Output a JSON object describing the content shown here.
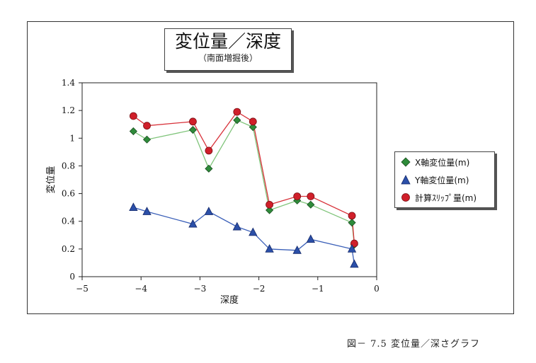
{
  "title": "変位量／深度",
  "subtitle": "（南面増掘後）",
  "caption": "図－ 7.5 変位量／深さグラフ",
  "colors": {
    "x_series": "#2e8b3a",
    "y_series": "#2b4fa8",
    "slip_series": "#d01f2a"
  },
  "chart_data": {
    "type": "line",
    "xlabel": "深度",
    "ylabel": "変位量",
    "xlim": [
      -5,
      0
    ],
    "ylim": [
      0,
      1.4
    ],
    "xticks": [
      "−5",
      "−4",
      "−3",
      "−2",
      "−1",
      "0"
    ],
    "yticks": [
      "0",
      "0.2",
      "0.4",
      "0.6",
      "0.8",
      "1",
      "1.2",
      "1.4"
    ],
    "legend_position": "right",
    "series": [
      {
        "name": "X軸変位量(m)",
        "marker": "diamond",
        "x": [
          -4.13,
          -3.9,
          -3.12,
          -2.85,
          -2.37,
          -2.1,
          -1.82,
          -1.35,
          -1.12,
          -0.42,
          -0.38
        ],
        "y": [
          1.05,
          0.99,
          1.06,
          0.78,
          1.13,
          1.08,
          0.48,
          0.55,
          0.52,
          0.39,
          0.23
        ]
      },
      {
        "name": "Y軸変位量(m)",
        "marker": "triangle",
        "x": [
          -4.13,
          -3.9,
          -3.12,
          -2.85,
          -2.37,
          -2.1,
          -1.82,
          -1.35,
          -1.12,
          -0.42,
          -0.38
        ],
        "y": [
          0.5,
          0.47,
          0.38,
          0.47,
          0.36,
          0.32,
          0.2,
          0.19,
          0.27,
          0.2,
          0.09
        ]
      },
      {
        "name": "計算ｽﾘｯﾌﾟ量(m)",
        "marker": "circle",
        "x": [
          -4.13,
          -3.9,
          -3.12,
          -2.85,
          -2.37,
          -2.1,
          -1.82,
          -1.35,
          -1.12,
          -0.42,
          -0.38
        ],
        "y": [
          1.16,
          1.09,
          1.12,
          0.91,
          1.19,
          1.12,
          0.52,
          0.58,
          0.58,
          0.44,
          0.24
        ]
      }
    ]
  }
}
